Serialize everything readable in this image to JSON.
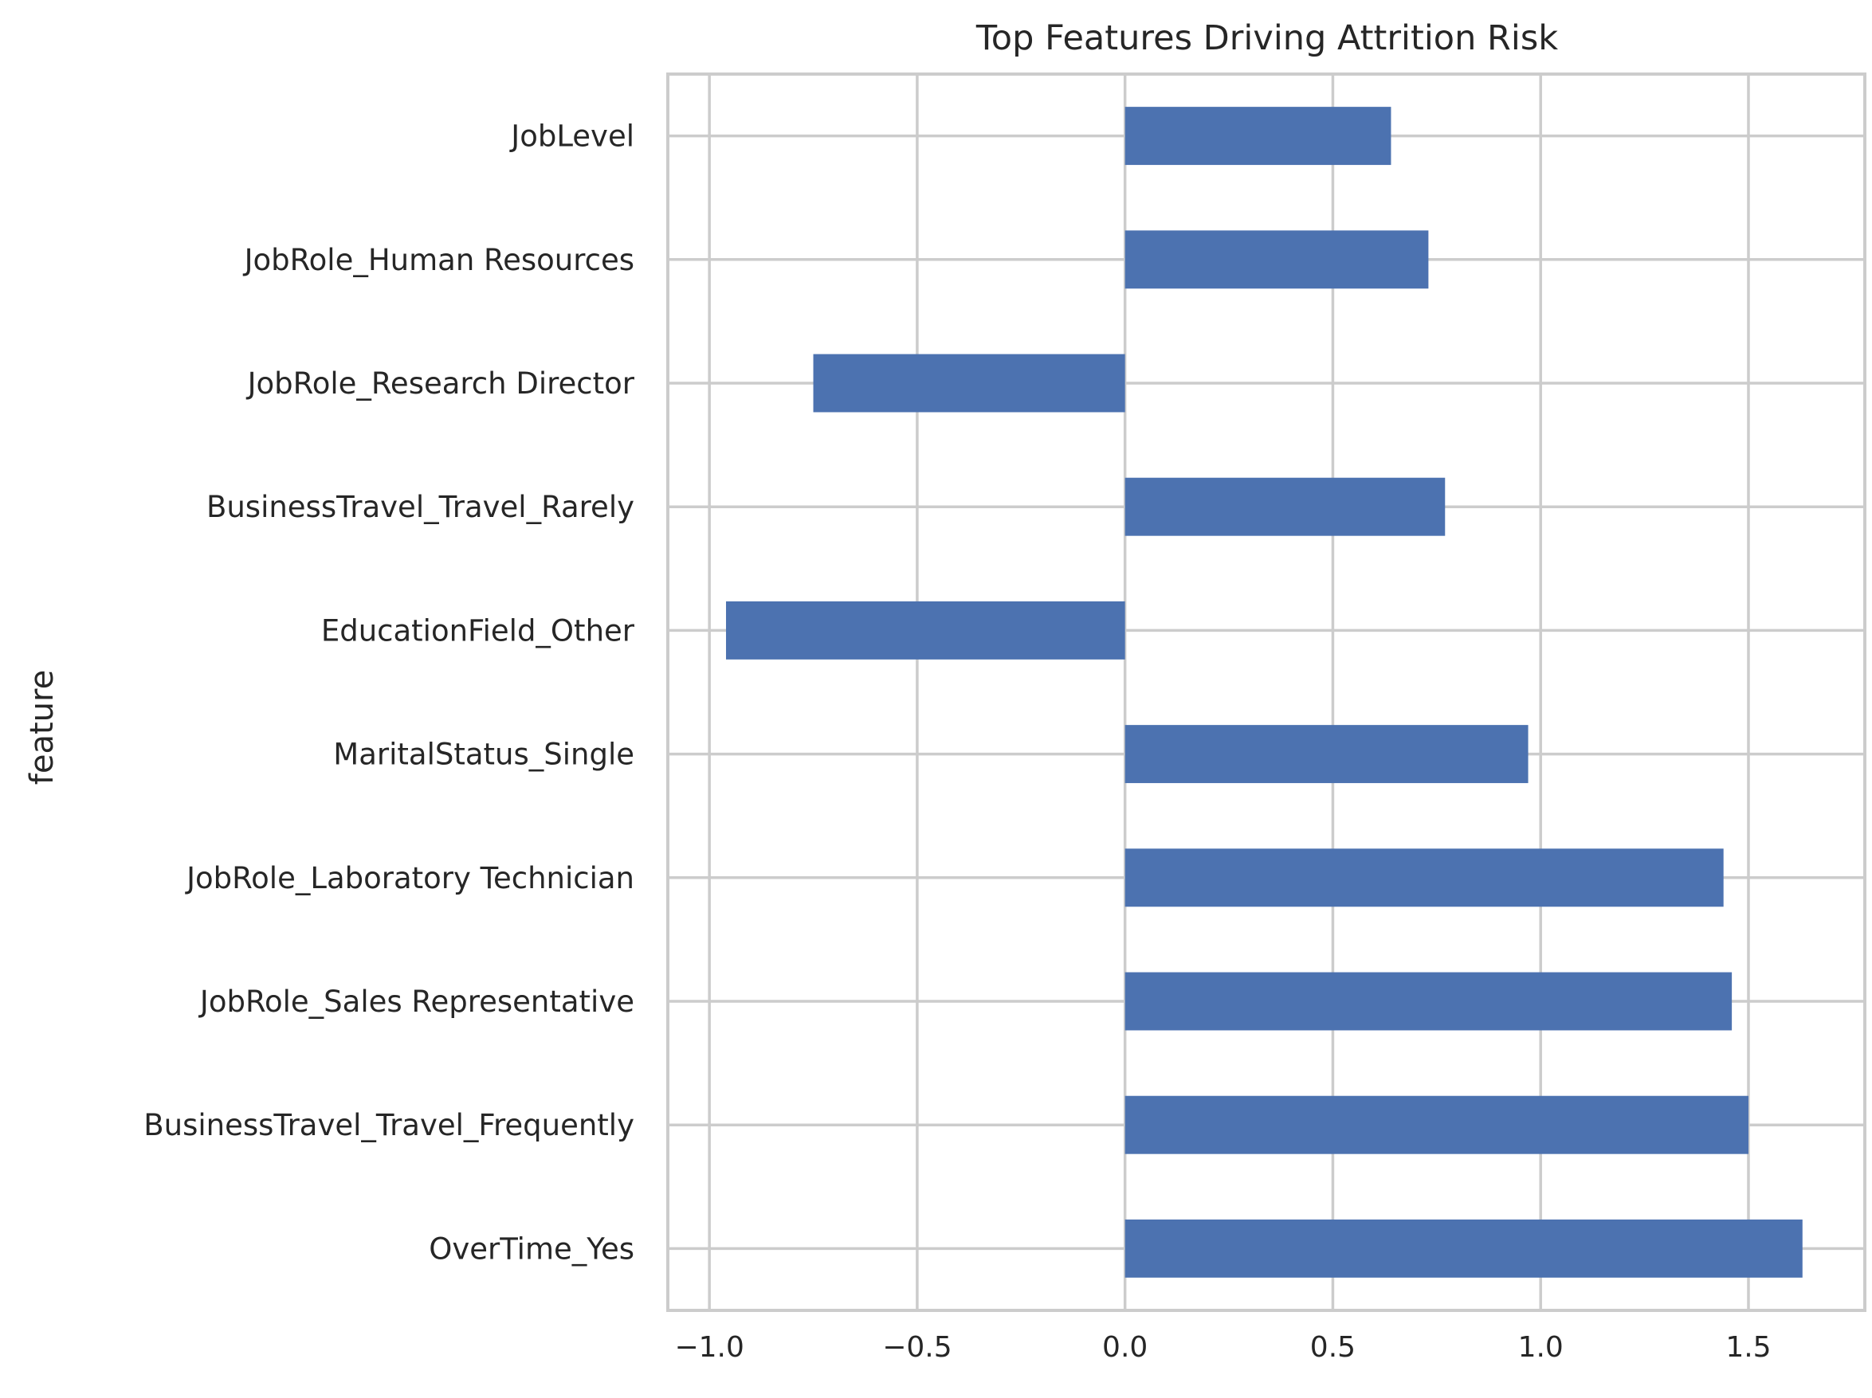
{
  "chart_data": {
    "type": "bar",
    "orientation": "horizontal",
    "title": "Top Features Driving Attrition Risk",
    "xlabel": "",
    "ylabel": "feature",
    "xlim": [
      -1.1,
      1.78
    ],
    "xticks": [
      -1.0,
      -0.5,
      0.0,
      0.5,
      1.0,
      1.5
    ],
    "xtick_labels": [
      "−1.0",
      "−0.5",
      "0.0",
      "0.5",
      "1.0",
      "1.5"
    ],
    "grid": true,
    "legend": "none",
    "bar_color": "#4c72b0",
    "categories": [
      "JobLevel",
      "JobRole_Human Resources",
      "JobRole_Research Director",
      "BusinessTravel_Travel_Rarely",
      "EducationField_Other",
      "MaritalStatus_Single",
      "JobRole_Laboratory Technician",
      "JobRole_Sales Representative",
      "BusinessTravel_Travel_Frequently",
      "OverTime_Yes"
    ],
    "values": [
      0.64,
      0.73,
      -0.75,
      0.77,
      -0.96,
      0.97,
      1.44,
      1.46,
      1.5,
      1.63
    ]
  }
}
